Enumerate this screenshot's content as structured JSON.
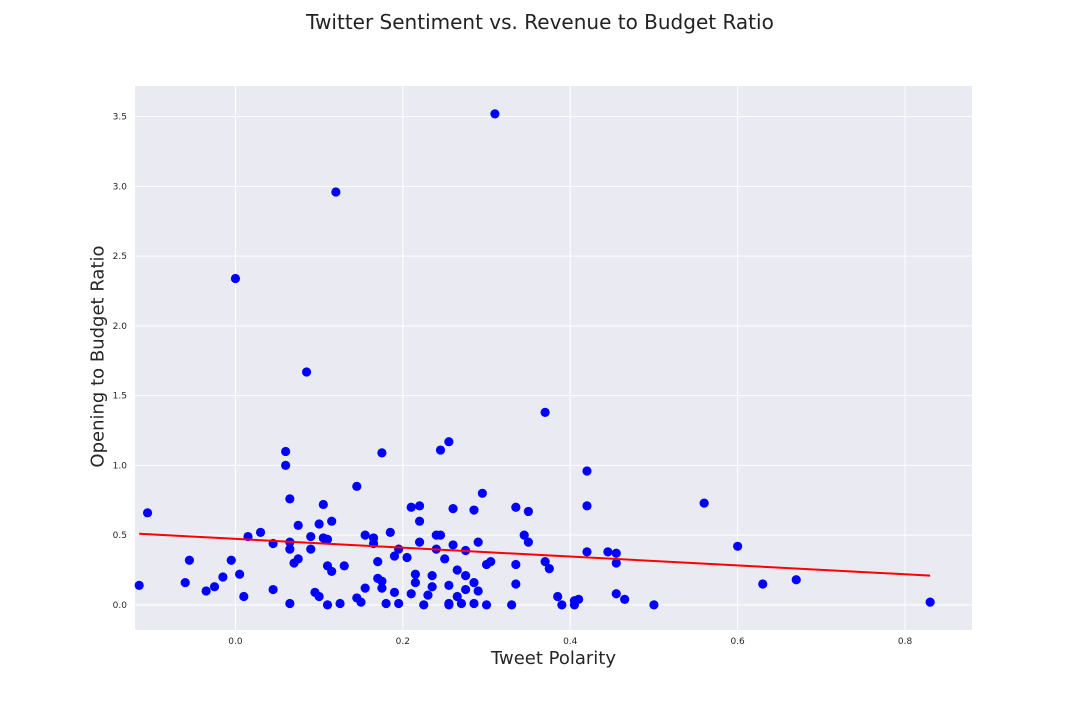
{
  "chart_data": {
    "type": "scatter",
    "title": "Twitter Sentiment vs. Revenue to Budget Ratio",
    "xlabel": "Tweet Polarity",
    "ylabel": "Opening to Budget Ratio",
    "xlim": [
      -0.12,
      0.88
    ],
    "ylim": [
      -0.18,
      3.72
    ],
    "x_ticks": [
      0.0,
      0.2,
      0.4,
      0.6,
      0.8
    ],
    "x_tick_labels": [
      "0.0",
      "0.2",
      "0.4",
      "0.6",
      "0.8"
    ],
    "y_ticks": [
      0.0,
      0.5,
      1.0,
      1.5,
      2.0,
      2.5,
      3.0,
      3.5
    ],
    "y_tick_labels": [
      "0.0",
      "0.5",
      "1.0",
      "1.5",
      "2.0",
      "2.5",
      "3.0",
      "3.5"
    ],
    "grid": true,
    "background": "#eaeaf2",
    "point_color": "#0000ff",
    "trend_color": "#ff0000",
    "points": [
      [
        0.31,
        3.52
      ],
      [
        0.12,
        2.96
      ],
      [
        0.0,
        2.34
      ],
      [
        0.085,
        1.67
      ],
      [
        0.37,
        1.38
      ],
      [
        0.255,
        1.17
      ],
      [
        0.245,
        1.11
      ],
      [
        0.175,
        1.09
      ],
      [
        0.06,
        1.1
      ],
      [
        0.06,
        1.0
      ],
      [
        0.42,
        0.96
      ],
      [
        0.145,
        0.85
      ],
      [
        0.295,
        0.8
      ],
      [
        0.065,
        0.76
      ],
      [
        0.105,
        0.72
      ],
      [
        0.56,
        0.73
      ],
      [
        0.42,
        0.71
      ],
      [
        0.22,
        0.71
      ],
      [
        0.21,
        0.7
      ],
      [
        0.335,
        0.7
      ],
      [
        0.26,
        0.69
      ],
      [
        0.285,
        0.68
      ],
      [
        0.35,
        0.67
      ],
      [
        -0.105,
        0.66
      ],
      [
        0.115,
        0.6
      ],
      [
        0.22,
        0.6
      ],
      [
        0.1,
        0.58
      ],
      [
        0.075,
        0.57
      ],
      [
        0.03,
        0.52
      ],
      [
        0.185,
        0.52
      ],
      [
        0.015,
        0.49
      ],
      [
        0.155,
        0.5
      ],
      [
        0.09,
        0.49
      ],
      [
        0.105,
        0.48
      ],
      [
        0.11,
        0.47
      ],
      [
        0.165,
        0.48
      ],
      [
        0.24,
        0.5
      ],
      [
        0.245,
        0.5
      ],
      [
        0.345,
        0.5
      ],
      [
        0.35,
        0.45
      ],
      [
        0.065,
        0.45
      ],
      [
        0.045,
        0.44
      ],
      [
        0.165,
        0.44
      ],
      [
        0.22,
        0.45
      ],
      [
        0.29,
        0.45
      ],
      [
        0.26,
        0.43
      ],
      [
        0.065,
        0.4
      ],
      [
        0.09,
        0.4
      ],
      [
        0.195,
        0.4
      ],
      [
        0.24,
        0.4
      ],
      [
        0.275,
        0.39
      ],
      [
        0.6,
        0.42
      ],
      [
        0.42,
        0.38
      ],
      [
        0.445,
        0.38
      ],
      [
        0.455,
        0.37
      ],
      [
        0.19,
        0.35
      ],
      [
        0.205,
        0.34
      ],
      [
        0.25,
        0.33
      ],
      [
        0.075,
        0.33
      ],
      [
        0.07,
        0.3
      ],
      [
        0.17,
        0.31
      ],
      [
        0.305,
        0.31
      ],
      [
        0.3,
        0.29
      ],
      [
        0.335,
        0.29
      ],
      [
        0.37,
        0.31
      ],
      [
        0.455,
        0.3
      ],
      [
        -0.005,
        0.32
      ],
      [
        -0.055,
        0.32
      ],
      [
        0.11,
        0.28
      ],
      [
        0.13,
        0.28
      ],
      [
        0.115,
        0.24
      ],
      [
        0.265,
        0.25
      ],
      [
        0.375,
        0.26
      ],
      [
        0.005,
        0.22
      ],
      [
        0.215,
        0.22
      ],
      [
        0.235,
        0.21
      ],
      [
        0.275,
        0.21
      ],
      [
        0.17,
        0.19
      ],
      [
        -0.015,
        0.2
      ],
      [
        0.175,
        0.17
      ],
      [
        0.215,
        0.16
      ],
      [
        0.335,
        0.15
      ],
      [
        0.63,
        0.15
      ],
      [
        0.67,
        0.18
      ],
      [
        -0.06,
        0.16
      ],
      [
        -0.115,
        0.14
      ],
      [
        -0.025,
        0.13
      ],
      [
        -0.035,
        0.1
      ],
      [
        0.045,
        0.11
      ],
      [
        0.155,
        0.12
      ],
      [
        0.175,
        0.12
      ],
      [
        0.235,
        0.13
      ],
      [
        0.255,
        0.14
      ],
      [
        0.285,
        0.16
      ],
      [
        0.275,
        0.11
      ],
      [
        0.29,
        0.1
      ],
      [
        0.095,
        0.09
      ],
      [
        0.19,
        0.09
      ],
      [
        0.21,
        0.08
      ],
      [
        0.23,
        0.07
      ],
      [
        0.265,
        0.06
      ],
      [
        0.1,
        0.06
      ],
      [
        0.145,
        0.05
      ],
      [
        0.01,
        0.06
      ],
      [
        0.385,
        0.06
      ],
      [
        0.41,
        0.04
      ],
      [
        0.405,
        0.03
      ],
      [
        0.455,
        0.08
      ],
      [
        0.465,
        0.04
      ],
      [
        0.15,
        0.02
      ],
      [
        0.065,
        0.01
      ],
      [
        0.125,
        0.01
      ],
      [
        0.18,
        0.01
      ],
      [
        0.195,
        0.01
      ],
      [
        0.255,
        0.01
      ],
      [
        0.27,
        0.01
      ],
      [
        0.285,
        0.01
      ],
      [
        0.11,
        0.0
      ],
      [
        0.225,
        0.0
      ],
      [
        0.255,
        0.0
      ],
      [
        0.3,
        0.0
      ],
      [
        0.33,
        0.0
      ],
      [
        0.39,
        0.0
      ],
      [
        0.405,
        0.0
      ],
      [
        0.5,
        0.0
      ],
      [
        0.83,
        0.02
      ]
    ],
    "trend_line": {
      "x": [
        -0.115,
        0.83
      ],
      "y": [
        0.51,
        0.21
      ]
    }
  }
}
